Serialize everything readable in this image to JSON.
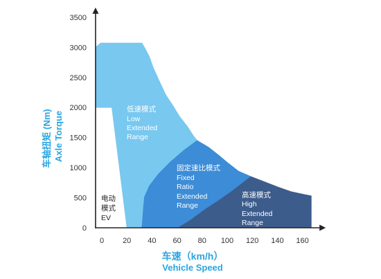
{
  "chart_data": {
    "type": "area",
    "xlabel_lines": [
      "车速（km/h）",
      "Vehicle Speed"
    ],
    "ylabel_lines": [
      "车轴扭矩 (Nm)",
      "Axle Torque"
    ],
    "xticks": [
      0,
      20,
      40,
      60,
      80,
      100,
      120,
      140,
      160
    ],
    "yticks": [
      0,
      500,
      1000,
      1500,
      2000,
      2500,
      3000,
      3500
    ],
    "xlim": [
      -5,
      178
    ],
    "ylim": [
      0,
      3650
    ],
    "grid": false,
    "series": [
      {
        "label_lines": [
          "电动",
          "模式",
          "EV"
        ],
        "color": "#ffffff",
        "label_color": "#222222",
        "points": [
          [
            -5,
            0
          ],
          [
            -5,
            2000
          ],
          [
            8,
            2000
          ],
          [
            20,
            0
          ]
        ]
      },
      {
        "label_lines": [
          "低速模式",
          "Low",
          "Extended",
          "Range"
        ],
        "color": "#78c8f0",
        "label_color": "#ffffff",
        "points": [
          [
            -5,
            2000
          ],
          [
            -5,
            3000
          ],
          [
            -1,
            3070
          ],
          [
            32,
            3070
          ],
          [
            34,
            3000
          ],
          [
            38,
            2840
          ],
          [
            41,
            2660
          ],
          [
            46,
            2430
          ],
          [
            51,
            2210
          ],
          [
            57,
            2020
          ],
          [
            62,
            1850
          ],
          [
            68,
            1690
          ],
          [
            73,
            1530
          ],
          [
            76,
            1450
          ],
          [
            65,
            1280
          ],
          [
            54,
            1080
          ],
          [
            45,
            890
          ],
          [
            38,
            700
          ],
          [
            34,
            510
          ],
          [
            33,
            280
          ],
          [
            32,
            0
          ],
          [
            20,
            0
          ],
          [
            8,
            2000
          ]
        ]
      },
      {
        "label_lines": [
          "固定速比模式",
          "Fixed",
          "Ratio",
          "Extended",
          "Range"
        ],
        "color": "#3c8cd7",
        "label_color": "#ffffff",
        "points": [
          [
            32,
            0
          ],
          [
            33,
            280
          ],
          [
            34,
            510
          ],
          [
            38,
            700
          ],
          [
            45,
            890
          ],
          [
            54,
            1080
          ],
          [
            65,
            1280
          ],
          [
            76,
            1450
          ],
          [
            85,
            1340
          ],
          [
            93,
            1210
          ],
          [
            101,
            1070
          ],
          [
            109,
            940
          ],
          [
            119,
            850
          ],
          [
            112,
            740
          ],
          [
            104,
            610
          ],
          [
            93,
            450
          ],
          [
            82,
            300
          ],
          [
            71,
            130
          ],
          [
            61,
            0
          ]
        ]
      },
      {
        "label_lines": [
          "高速模式",
          "High",
          "Extended",
          "Range"
        ],
        "color": "#3c5c8c",
        "label_color": "#ffffff",
        "points": [
          [
            61,
            0
          ],
          [
            71,
            130
          ],
          [
            82,
            300
          ],
          [
            93,
            450
          ],
          [
            104,
            610
          ],
          [
            112,
            740
          ],
          [
            119,
            850
          ],
          [
            129,
            770
          ],
          [
            140,
            680
          ],
          [
            151,
            600
          ],
          [
            162,
            550
          ],
          [
            167,
            530
          ],
          [
            167,
            0
          ]
        ]
      }
    ]
  },
  "colors": {
    "axis_title": "#28a5e1",
    "axis_line": "#222222",
    "tick_label": "#333333"
  }
}
